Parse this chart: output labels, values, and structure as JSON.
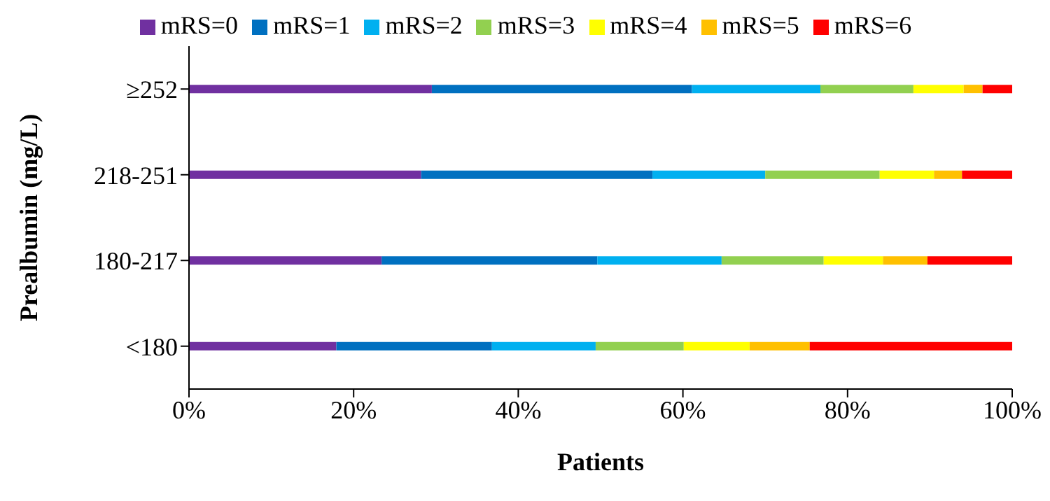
{
  "chart_data": {
    "type": "bar",
    "orientation": "horizontal",
    "stacked": true,
    "xlabel": "Patients",
    "ylabel": "Prealbumin (mg/L)",
    "categories": [
      "≥252",
      "218-251",
      "180-217",
      "<180"
    ],
    "series": [
      {
        "name": "mRS=0",
        "color": "#7030a0",
        "values": [
          29.5,
          28.2,
          23.4,
          17.9
        ]
      },
      {
        "name": "mRS=1",
        "color": "#0070c0",
        "values": [
          31.6,
          28.1,
          26.2,
          18.9
        ]
      },
      {
        "name": "mRS=2",
        "color": "#00b0f0",
        "values": [
          15.6,
          13.7,
          15.1,
          12.6
        ]
      },
      {
        "name": "mRS=3",
        "color": "#92d050",
        "values": [
          11.3,
          13.9,
          12.4,
          10.7
        ]
      },
      {
        "name": "mRS=4",
        "color": "#ffff00",
        "values": [
          6.1,
          6.6,
          7.2,
          8.0
        ]
      },
      {
        "name": "mRS=5",
        "color": "#ffc000",
        "values": [
          2.3,
          3.4,
          5.4,
          7.3
        ]
      },
      {
        "name": "mRS=6",
        "color": "#ff0000",
        "values": [
          3.6,
          6.1,
          10.3,
          24.6
        ]
      }
    ],
    "xlim": [
      0,
      100
    ],
    "xticks": [
      {
        "value": 0,
        "label": "0%"
      },
      {
        "value": 20,
        "label": "20%"
      },
      {
        "value": 40,
        "label": "40%"
      },
      {
        "value": 60,
        "label": "60%"
      },
      {
        "value": 80,
        "label": "80%"
      },
      {
        "value": 100,
        "label": "100%"
      }
    ],
    "grid": false,
    "legend": "top"
  }
}
